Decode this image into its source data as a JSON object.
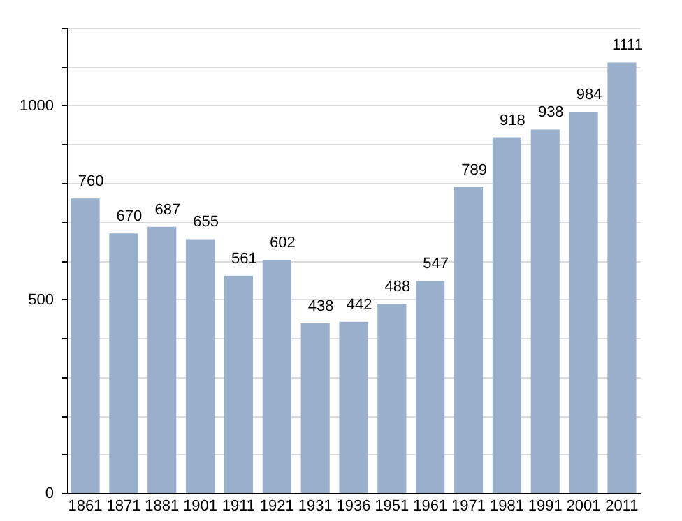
{
  "chart_data": {
    "type": "bar",
    "categories": [
      "1861",
      "1871",
      "1881",
      "1901",
      "1911",
      "1921",
      "1931",
      "1936",
      "1951",
      "1961",
      "1971",
      "1981",
      "1991",
      "2001",
      "2011"
    ],
    "values": [
      760,
      670,
      687,
      655,
      561,
      602,
      438,
      442,
      488,
      547,
      789,
      918,
      938,
      984,
      1111
    ],
    "color": "#98b0cc",
    "ylim": [
      0,
      1200
    ],
    "yticks": [
      0,
      {
        "value": 100,
        "label": null
      },
      {
        "value": 200,
        "label": null
      },
      {
        "value": 300,
        "label": null
      },
      {
        "value": 400,
        "label": null
      },
      500,
      {
        "value": 600,
        "label": null
      },
      {
        "value": 700,
        "label": null
      },
      {
        "value": 800,
        "label": null
      },
      {
        "value": 900,
        "label": null
      },
      1000,
      {
        "value": 1100,
        "label": null
      },
      {
        "value": 1200,
        "label": null
      }
    ],
    "grid": true,
    "data_labels": true
  }
}
